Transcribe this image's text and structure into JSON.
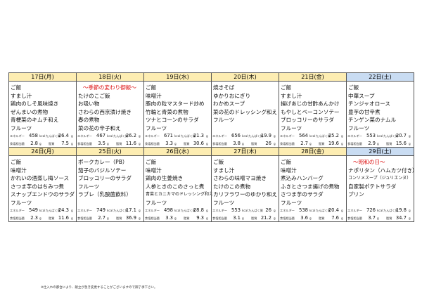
{
  "labels": {
    "energy": "エネルギー",
    "kcal": "kcal",
    "protein": "たんぱく質",
    "g": "g",
    "salt": "食塩相当量",
    "fat": "脂質"
  },
  "weeks": [
    {
      "days": [
        {
          "date": "17日(月)",
          "items": [
            "ご飯",
            "すまし汁",
            "鶏肉のしそ風味焼き",
            "ぜんまいの煮物",
            "青梗菜のキムチ和え",
            "フルーツ"
          ],
          "energy": "458",
          "protein": "26.4",
          "salt": "2.8",
          "fat": "7.5"
        },
        {
          "date": "18日(火)",
          "note": "～季節の変わり御飯～",
          "items": [
            "たけのこご飯",
            "お吸い物",
            "さわらの西京漬け焼き",
            "春の煮物",
            "菜の花の辛子和え"
          ],
          "energy": "467",
          "protein": "26.2",
          "salt": "3.5",
          "fat": "11.6"
        },
        {
          "date": "19日(水)",
          "items": [
            "ご飯",
            "味噌汁",
            "豚肉の粒マスタード炒め",
            "竹輪と青菜の煮物",
            "ツナとコーンのサラダ",
            "フルーツ"
          ],
          "energy": "671",
          "protein": "21.3",
          "salt": "3.3",
          "fat": "30.6"
        },
        {
          "date": "20日(木)",
          "items": [
            "焼きそば",
            "ゆかりおにぎり",
            "わかめスープ",
            "菜の花のドレッシング和え",
            "フルーツ"
          ],
          "energy": "656",
          "protein": "19.9",
          "salt": "3.8",
          "fat": "26"
        },
        {
          "date": "21日(金)",
          "items": [
            "ご飯",
            "すまし汁",
            "揚げあじの甘酢あんかけ",
            "もやしとベーコンソテー",
            "ブロッコリーのサラダ",
            "フルーツ"
          ],
          "energy": "564",
          "protein": "25.2",
          "salt": "2.7",
          "fat": "19.6"
        },
        {
          "date": "22日(土)",
          "items": [
            "ご飯",
            "中華スープ",
            "チンジャオロース",
            "豊芋の甘辛煮",
            "チンゲン菜のナムル",
            "フルーツ"
          ],
          "energy": "553",
          "protein": "20.7",
          "salt": "2.9",
          "fat": "15.6"
        }
      ]
    },
    {
      "days": [
        {
          "date": "24日(月)",
          "items": [
            "ご飯",
            "味噌汁",
            "かれいの酒蒸し梅ソース",
            "さつま芋のはちみつ煮",
            "スナップエンドウのサラダ",
            "フルーツ"
          ],
          "energy": "549",
          "protein": "24.3",
          "salt": "2.3",
          "fat": "11.6"
        },
        {
          "date": "25日(火)",
          "items": [
            "ポークカレー（PB）",
            "茄子のバジルソテー",
            "ブロッコリーのサラダ",
            "フルーツ",
            "ラブレ（乳酸菌飲料）"
          ],
          "energy": "749",
          "protein": "17.1",
          "salt": "2.7",
          "fat": "36.9"
        },
        {
          "date": "26日(水)",
          "items": [
            "ご飯",
            "味噌汁",
            "鶏肉の生姜焼き",
            "人参ときのこのさっと煮",
            "青菜とカニカマのドレッシング和え",
            "フルーツ"
          ],
          "energy": "498",
          "protein": "28.8",
          "salt": "3.3",
          "fat": "9.3"
        },
        {
          "date": "27日(木)",
          "items": [
            "ご飯",
            "すまし汁",
            "さわらの味噌マヨ焼き",
            "たけのこの煮物",
            "カリフラワーのゆかり和え",
            "フルーツ"
          ],
          "energy": "553",
          "protein": "26",
          "salt": "3.1",
          "fat": "21.2"
        },
        {
          "date": "28日(金)",
          "items": [
            "ご飯",
            "味噌汁",
            "煮込みハンバーグ",
            "ふきとさつま揚げの煮物",
            "さつま芋のサラダ",
            "フルーツ"
          ],
          "energy": "538",
          "protein": "20.4",
          "salt": "3.6",
          "fat": "7.6"
        },
        {
          "date": "29日(土)",
          "note": "～昭和の日～",
          "items": [
            "ナポリタン（ハムカツ付き）",
            "コンソメスープ（ジュリエンヌ）",
            "自家製ポテトサラダ",
            "プリン"
          ],
          "energy": "726",
          "protein": "19.8",
          "salt": "3.7",
          "fat": "34.7"
        }
      ]
    }
  ],
  "footnote": "※仕入れの都合により、献立が急き変更することがございますので御了承下さい。"
}
